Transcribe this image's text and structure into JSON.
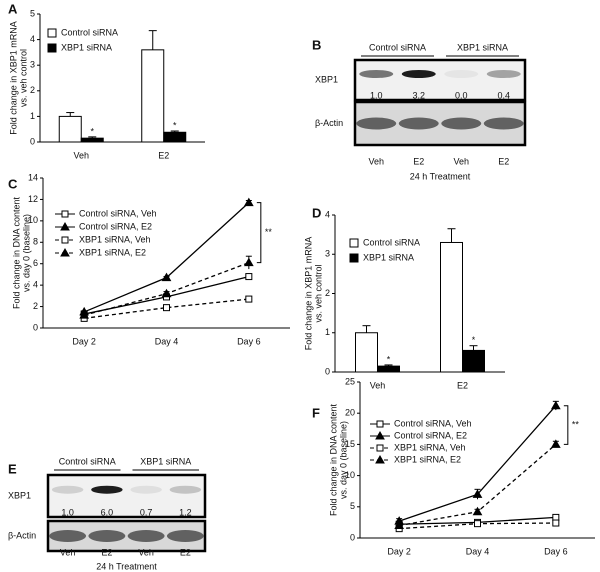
{
  "panel_labels": [
    "A",
    "B",
    "C",
    "D",
    "E",
    "F"
  ],
  "chart_data": [
    {
      "type": "bar",
      "ylabel": [
        "Fold change in XBP1 mRNA",
        "vs. veh control"
      ],
      "categories": [
        "Veh",
        "E2"
      ],
      "ylim": [
        0,
        5
      ],
      "yticks": [
        0,
        1,
        2,
        3,
        4,
        5
      ],
      "series": [
        {
          "name": "Control siRNA",
          "color": "#ffffff",
          "values": [
            1.0,
            3.6
          ],
          "errors": [
            0.15,
            0.75
          ]
        },
        {
          "name": "XBP1 siRNA",
          "color": "#000000",
          "values": [
            0.15,
            0.38
          ],
          "errors": [
            0.05,
            0.05
          ],
          "significance": [
            "*",
            "*"
          ]
        }
      ]
    },
    {
      "type": "line",
      "ylabel": [
        "Fold change in DNA content",
        "vs. day 0 (baseline)"
      ],
      "categories": [
        "Day 2",
        "Day 4",
        "Day 6"
      ],
      "ylim": [
        0,
        14
      ],
      "yticks": [
        0,
        2,
        4,
        6,
        8,
        10,
        12,
        14
      ],
      "bracket_label": "**",
      "series": [
        {
          "name": "Control siRNA, Veh",
          "color": "#000000",
          "marker": "square",
          "filled": false,
          "dashed": false,
          "values": [
            1.3,
            2.9,
            4.8
          ],
          "errors": [
            0.1,
            0.1,
            0.1
          ]
        },
        {
          "name": "Control siRNA, E2",
          "color": "#000000",
          "marker": "triangle",
          "filled": true,
          "dashed": false,
          "values": [
            1.5,
            4.7,
            11.7
          ],
          "errors": [
            0.1,
            0.1,
            0.2
          ]
        },
        {
          "name": "XBP1 siRNA, Veh",
          "color": "#000000",
          "marker": "square",
          "filled": false,
          "dashed": true,
          "values": [
            0.9,
            1.9,
            2.7
          ],
          "errors": [
            0.1,
            0.1,
            0.1
          ]
        },
        {
          "name": "XBP1 siRNA, E2",
          "color": "#000000",
          "marker": "triangle",
          "filled": true,
          "dashed": true,
          "values": [
            1.2,
            3.2,
            6.1
          ],
          "errors": [
            0.1,
            0.2,
            0.6
          ]
        }
      ]
    },
    {
      "type": "bar",
      "ylabel": [
        "Fold change in XBP1 mRNA",
        "vs. veh control"
      ],
      "categories": [
        "Veh",
        "E2"
      ],
      "ylim": [
        0,
        4
      ],
      "yticks": [
        0,
        1,
        2,
        3,
        4
      ],
      "series": [
        {
          "name": "Control siRNA",
          "color": "#ffffff",
          "values": [
            1.0,
            3.3
          ],
          "errors": [
            0.18,
            0.35
          ]
        },
        {
          "name": "XBP1 siRNA",
          "color": "#000000",
          "values": [
            0.15,
            0.55
          ],
          "errors": [
            0.03,
            0.12
          ],
          "significance": [
            "*",
            "*"
          ]
        }
      ]
    },
    {
      "type": "line",
      "ylabel": [
        "Fold change in DNA content",
        "vs. day 0 (baseline)"
      ],
      "categories": [
        "Day 2",
        "Day 4",
        "Day 6"
      ],
      "ylim": [
        0,
        25
      ],
      "yticks": [
        0,
        5,
        10,
        15,
        20,
        25
      ],
      "bracket_label": "**",
      "series": [
        {
          "name": "Control siRNA, Veh",
          "color": "#000000",
          "marker": "square",
          "filled": false,
          "dashed": false,
          "values": [
            2.2,
            2.5,
            3.3
          ],
          "errors": [
            0.3,
            0.3,
            0.4
          ]
        },
        {
          "name": "Control siRNA, E2",
          "color": "#000000",
          "marker": "triangle",
          "filled": true,
          "dashed": false,
          "values": [
            2.7,
            7.0,
            21.2
          ],
          "errors": [
            0.4,
            0.8,
            0.7
          ]
        },
        {
          "name": "XBP1 siRNA, Veh",
          "color": "#000000",
          "marker": "square",
          "filled": false,
          "dashed": true,
          "values": [
            1.5,
            2.3,
            2.4
          ],
          "errors": [
            0.3,
            0.3,
            0.4
          ]
        },
        {
          "name": "XBP1 siRNA, E2",
          "color": "#000000",
          "marker": "triangle",
          "filled": true,
          "dashed": true,
          "values": [
            2.0,
            4.2,
            15.0
          ],
          "errors": [
            0.3,
            0.4,
            0.5
          ]
        }
      ]
    }
  ],
  "blots": [
    {
      "groups": [
        "Control siRNA",
        "XBP1 siRNA"
      ],
      "rows": [
        "XBP1",
        "β-Actin"
      ],
      "quantification": [
        "1.0",
        "3.2",
        "0.0",
        "0.4"
      ],
      "lanes": [
        "Veh",
        "E2",
        "Veh",
        "E2"
      ],
      "footer": "24 h Treatment"
    },
    {
      "groups": [
        "Control siRNA",
        "XBP1 siRNA"
      ],
      "rows": [
        "XBP1",
        "β-Actin"
      ],
      "quantification": [
        "1.0",
        "6.0",
        "0.7",
        "1.2"
      ],
      "lanes": [
        "Veh",
        "E2",
        "Veh",
        "E2"
      ],
      "footer": "24 h Treatment"
    }
  ]
}
